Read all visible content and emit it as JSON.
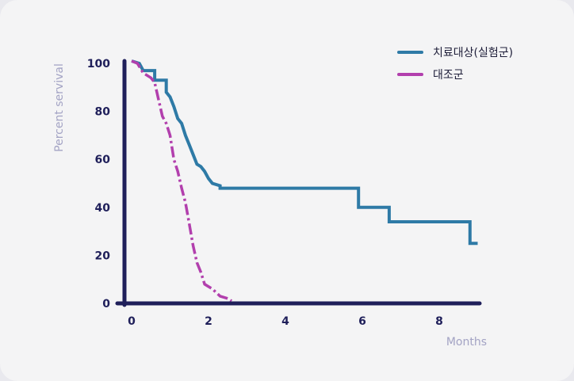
{
  "chart_data": {
    "type": "line",
    "xlabel": "Months",
    "ylabel": "Percent servival",
    "xlim": [
      0,
      9
    ],
    "ylim": [
      0,
      100
    ],
    "x_ticks": [
      "0",
      "2",
      "4",
      "6",
      "8"
    ],
    "y_ticks": [
      "0",
      "20",
      "40",
      "60",
      "80",
      "100"
    ],
    "legend_position": "top-right",
    "series": [
      {
        "name": "치료대상(실험군)",
        "color": "#2e7aa6",
        "style": "solid-step",
        "points": [
          [
            0,
            101
          ],
          [
            0.2,
            100
          ],
          [
            0.3,
            97
          ],
          [
            0.4,
            97
          ],
          [
            0.6,
            97
          ],
          [
            0.6,
            93
          ],
          [
            0.9,
            93
          ],
          [
            0.9,
            88
          ],
          [
            1.0,
            86
          ],
          [
            1.1,
            82
          ],
          [
            1.2,
            77
          ],
          [
            1.3,
            75
          ],
          [
            1.4,
            70
          ],
          [
            1.5,
            66
          ],
          [
            1.6,
            62
          ],
          [
            1.7,
            58
          ],
          [
            1.8,
            57
          ],
          [
            1.9,
            55
          ],
          [
            2.0,
            52
          ],
          [
            2.1,
            50
          ],
          [
            2.3,
            49
          ],
          [
            2.3,
            48
          ],
          [
            5.9,
            48
          ],
          [
            5.9,
            40
          ],
          [
            6.7,
            40
          ],
          [
            6.7,
            34
          ],
          [
            8.8,
            34
          ],
          [
            8.8,
            25
          ],
          [
            9.0,
            25
          ]
        ]
      },
      {
        "name": "대조군",
        "color": "#b23fad",
        "style": "dashed",
        "points": [
          [
            0,
            101
          ],
          [
            0.15,
            100
          ],
          [
            0.3,
            96
          ],
          [
            0.5,
            94
          ],
          [
            0.6,
            92
          ],
          [
            0.7,
            85
          ],
          [
            0.8,
            78
          ],
          [
            0.9,
            75
          ],
          [
            1.0,
            70
          ],
          [
            1.1,
            60
          ],
          [
            1.2,
            55
          ],
          [
            1.3,
            48
          ],
          [
            1.4,
            42
          ],
          [
            1.5,
            33
          ],
          [
            1.6,
            24
          ],
          [
            1.7,
            17
          ],
          [
            1.8,
            13
          ],
          [
            1.9,
            8
          ],
          [
            2.1,
            6
          ],
          [
            2.3,
            3
          ],
          [
            2.5,
            2
          ],
          [
            2.6,
            1
          ]
        ]
      }
    ]
  }
}
